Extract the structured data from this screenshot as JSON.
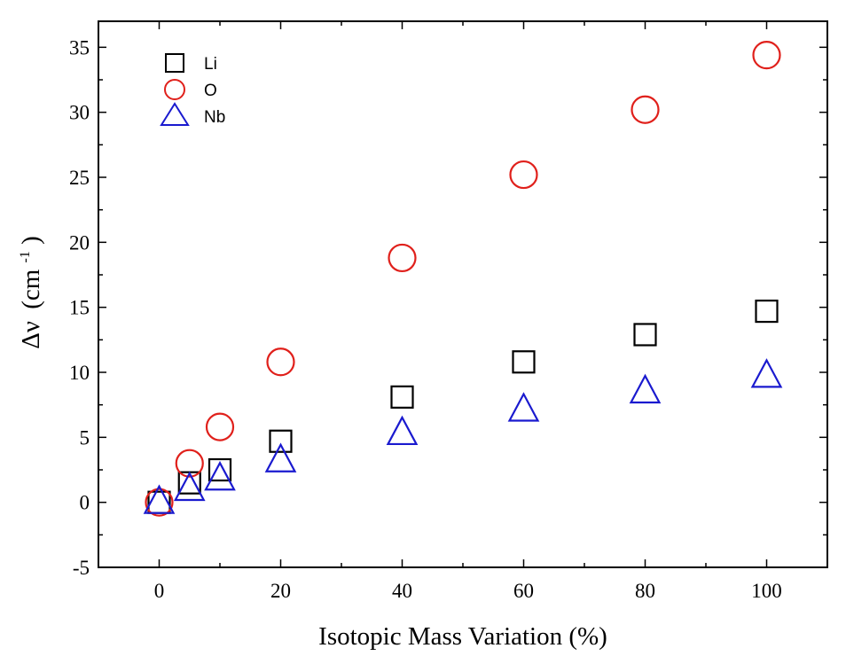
{
  "chart_data": {
    "type": "scatter",
    "xlabel": "Isotopic Mass Variation (%)",
    "ylabel_symbol": "Δν",
    "ylabel_unit": "(cm",
    "ylabel_exp": "-1",
    "ylabel_close": ")",
    "xlim": [
      -10,
      110
    ],
    "ylim": [
      -5,
      37
    ],
    "xticks": [
      0,
      20,
      40,
      60,
      80,
      100
    ],
    "yticks": [
      -5,
      0,
      5,
      10,
      15,
      20,
      25,
      30,
      35
    ],
    "legend_position": "top-left",
    "series": [
      {
        "name": "Li",
        "marker": "square",
        "color": "#000000",
        "x": [
          0,
          5,
          10,
          20,
          40,
          60,
          80,
          100
        ],
        "y": [
          0,
          1.5,
          2.5,
          4.7,
          8.1,
          10.8,
          12.9,
          14.7
        ]
      },
      {
        "name": "O",
        "marker": "circle",
        "color": "#e0201b",
        "x": [
          0,
          5,
          10,
          20,
          40,
          60,
          80,
          100
        ],
        "y": [
          0,
          3.0,
          5.8,
          10.8,
          18.8,
          25.2,
          30.2,
          34.4
        ]
      },
      {
        "name": "Nb",
        "marker": "triangle",
        "color": "#1a1acf",
        "x": [
          0,
          5,
          10,
          20,
          40,
          60,
          80,
          100
        ],
        "y": [
          0,
          1.0,
          1.8,
          3.2,
          5.3,
          7.1,
          8.5,
          9.7
        ]
      }
    ]
  }
}
